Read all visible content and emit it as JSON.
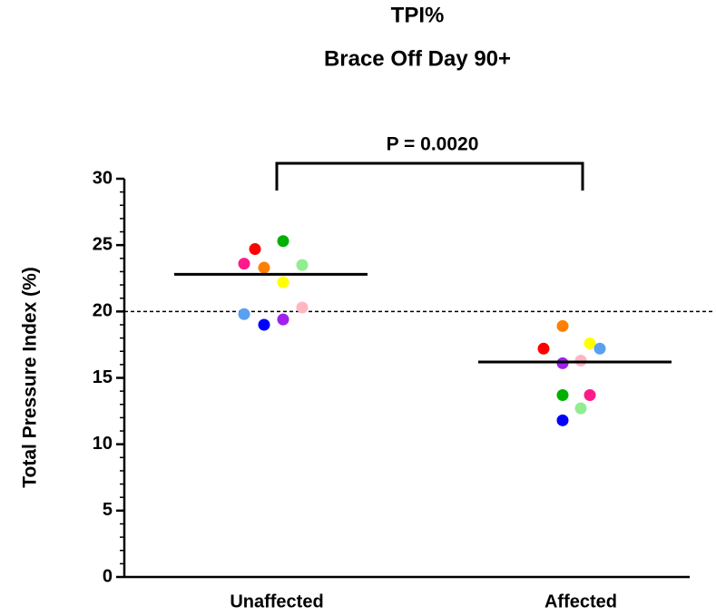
{
  "chart_data": {
    "type": "dot",
    "title": "TPI%",
    "subtitle": "Brace Off Day 90+",
    "y_label": "Total Pressure Index (%)",
    "categories": [
      "Unaffected",
      "Affected"
    ],
    "series": [
      {
        "color": "#ff0000",
        "values": [
          24.7,
          17.2
        ]
      },
      {
        "color": "#00b000",
        "values": [
          25.3,
          13.7
        ]
      },
      {
        "color": "#ff1a8c",
        "values": [
          23.6,
          13.7
        ]
      },
      {
        "color": "#ff8000",
        "values": [
          23.3,
          18.9
        ]
      },
      {
        "color": "#90ee90",
        "values": [
          23.5,
          12.7
        ]
      },
      {
        "color": "#ffff00",
        "values": [
          22.2,
          17.6
        ]
      },
      {
        "color": "#ffb6c1",
        "values": [
          20.3,
          16.3
        ]
      },
      {
        "color": "#5aa0f0",
        "values": [
          19.8,
          17.2
        ]
      },
      {
        "color": "#0000ff",
        "values": [
          19.0,
          11.8
        ]
      },
      {
        "color": "#a020f0",
        "values": [
          19.4,
          16.1
        ]
      }
    ],
    "medians": [
      22.8,
      16.2
    ],
    "reference_line": 20,
    "annotation": "P = 0.0020",
    "ylim": [
      0,
      30
    ],
    "yticks": [
      0,
      5,
      10,
      15,
      20,
      25,
      30
    ]
  }
}
